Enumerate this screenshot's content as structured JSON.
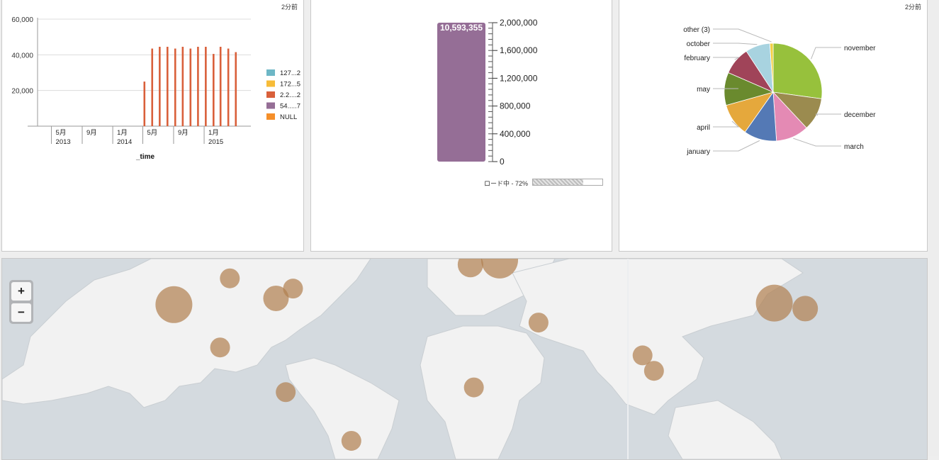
{
  "panels": {
    "timestamp_1": "2分前",
    "timestamp_3": "2分前"
  },
  "colors": {
    "bar": "#d9603b",
    "gauge_fill": "#956e96",
    "bubble": "#b07f4f",
    "land": "#f2f2f2",
    "water": "#d4dadf"
  },
  "chart_data": [
    {
      "type": "bar",
      "x_axis_title": "_time",
      "y_ticks": [
        "60,000",
        "40,000",
        "20,000"
      ],
      "ylim": [
        0,
        60000
      ],
      "x_ticks": [
        {
          "month": "5月",
          "year": "2013"
        },
        {
          "month": "9月",
          "year": ""
        },
        {
          "month": "1月",
          "year": "2014"
        },
        {
          "month": "5月",
          "year": ""
        },
        {
          "month": "9月",
          "year": ""
        },
        {
          "month": "1月",
          "year": "2015"
        }
      ],
      "x_start": "2013-03",
      "x_end": "2015-07",
      "series": [
        {
          "name": "2.2....2",
          "color": "#d9603b",
          "points": [
            {
              "x": "2014-05-01",
              "y": 25000
            },
            {
              "x": "2014-06-01",
              "y": 43500
            },
            {
              "x": "2014-07-01",
              "y": 44500
            },
            {
              "x": "2014-08-01",
              "y": 44500
            },
            {
              "x": "2014-09-01",
              "y": 43500
            },
            {
              "x": "2014-10-01",
              "y": 44500
            },
            {
              "x": "2014-11-01",
              "y": 43500
            },
            {
              "x": "2014-12-01",
              "y": 44500
            },
            {
              "x": "2015-01-01",
              "y": 44500
            },
            {
              "x": "2015-02-01",
              "y": 40500
            },
            {
              "x": "2015-03-01",
              "y": 44500
            },
            {
              "x": "2015-04-01",
              "y": 43500
            },
            {
              "x": "2015-05-01",
              "y": 41500
            }
          ]
        }
      ],
      "legend": [
        {
          "label": "127...2",
          "color": "#6db7c6"
        },
        {
          "label": "172...5",
          "color": "#f7bc38"
        },
        {
          "label": "2.2....2",
          "color": "#d9603b"
        },
        {
          "label": "54.....7",
          "color": "#956e96"
        },
        {
          "label": "NULL",
          "color": "#f58f2a"
        }
      ]
    },
    {
      "type": "gauge",
      "value": 10593355,
      "value_label": "10,593,355",
      "ticks": [
        "2,000,000",
        "1,600,000",
        "1,200,000",
        "800,000",
        "400,000",
        "0"
      ],
      "range": [
        0,
        2000000
      ],
      "loading_text": "ロード中 - 72%",
      "loading_progress": 0.72
    },
    {
      "type": "pie",
      "slices": [
        {
          "label": "november",
          "value": 25,
          "color": "#97c13c"
        },
        {
          "label": "december",
          "value": 10,
          "color": "#9b8b4f"
        },
        {
          "label": "march",
          "value": 10,
          "color": "#e48ab4"
        },
        {
          "label": "january",
          "value": 10,
          "color": "#5479b5"
        },
        {
          "label": "april",
          "value": 10,
          "color": "#e5a83c"
        },
        {
          "label": "may",
          "value": 10,
          "color": "#6a8a2e"
        },
        {
          "label": "february",
          "value": 8.5,
          "color": "#a04459"
        },
        {
          "label": "october",
          "value": 7.5,
          "color": "#a8d3e0"
        },
        {
          "label": "other (3)",
          "value": 1,
          "color": "#f2cf44"
        }
      ]
    },
    {
      "type": "bubble_map",
      "markers": [
        {
          "lon": -97,
          "lat": 45,
          "size": "small"
        },
        {
          "lon": -120,
          "lat": 37,
          "size": "large"
        },
        {
          "lon": -78,
          "lat": 39,
          "size": "medium"
        },
        {
          "lon": -71,
          "lat": 42,
          "size": "small"
        },
        {
          "lon": -101,
          "lat": 22,
          "size": "small"
        },
        {
          "lon": -74,
          "lat": 4.5,
          "size": "small"
        },
        {
          "lon": -47,
          "lat": -15,
          "size": "small"
        },
        {
          "lon": 2,
          "lat": 48.8,
          "size": "medium"
        },
        {
          "lon": 14,
          "lat": 50,
          "size": "large"
        },
        {
          "lon": 30,
          "lat": 31,
          "size": "small"
        },
        {
          "lon": 3.4,
          "lat": 6.4,
          "size": "small"
        },
        {
          "lon": 72.8,
          "lat": 19,
          "size": "small"
        },
        {
          "lon": 77.5,
          "lat": 13,
          "size": "small"
        },
        {
          "lon": 127,
          "lat": 37.5,
          "size": "large"
        },
        {
          "lon": 139.7,
          "lat": 35.7,
          "size": "medium"
        }
      ]
    }
  ],
  "map_controls": {
    "zoom_in": "+",
    "zoom_out": "−"
  }
}
